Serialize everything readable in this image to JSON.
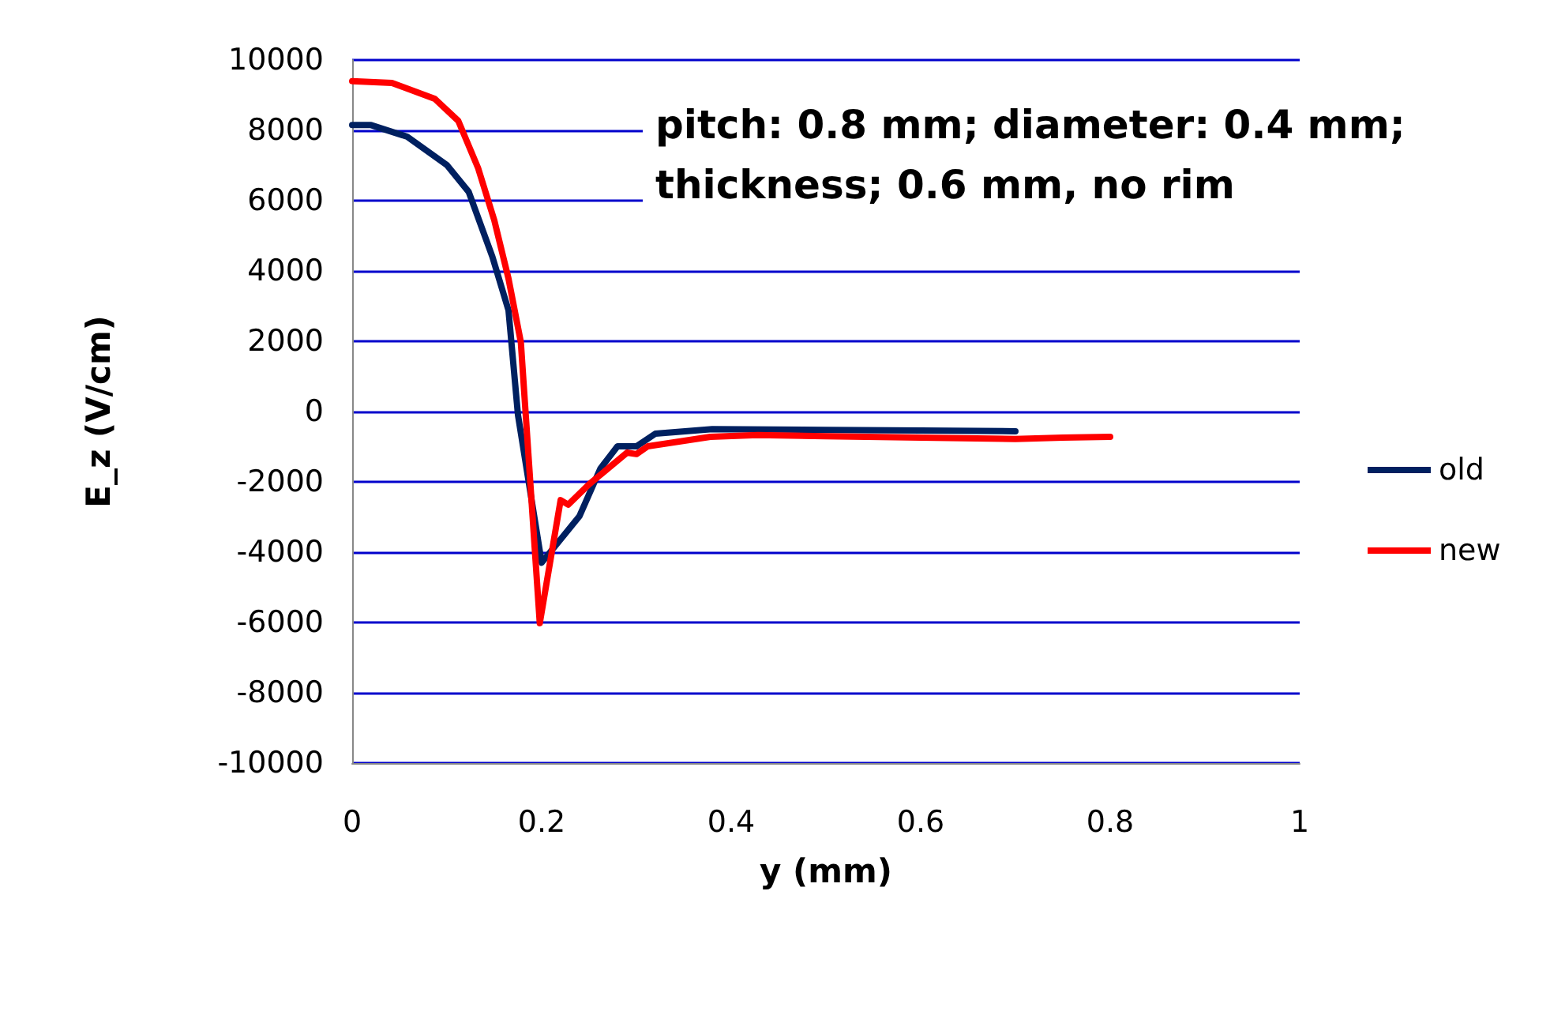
{
  "chart_data": {
    "type": "line",
    "xlabel": "y (mm)",
    "ylabel": "E_z (V/cm)",
    "annotations": [
      "pitch: 0.8 mm; diameter: 0.4 mm; thickness; 0.6 mm, no rim"
    ],
    "xlim": [
      0,
      1
    ],
    "xticks": [
      0,
      0.2,
      0.4,
      0.6,
      0.8,
      1
    ],
    "ylim": [
      -10000,
      10000
    ],
    "yticks": [
      -10000,
      -8000,
      -6000,
      -4000,
      -2000,
      0,
      2000,
      4000,
      6000,
      8000,
      10000
    ],
    "grid": "y",
    "legend": "right",
    "marker": "none",
    "line_style": "solid",
    "series": [
      {
        "name": "old",
        "color": "#002060",
        "x": [
          0,
          0.02,
          0.058,
          0.1,
          0.123,
          0.148,
          0.165,
          0.175,
          0.2,
          0.24,
          0.262,
          0.28,
          0.3,
          0.32,
          0.38,
          0.5,
          0.6,
          0.7
        ],
        "values": [
          8150,
          8150,
          7820,
          7010,
          6250,
          4400,
          2880,
          -100,
          -4300,
          -2970,
          -1620,
          -990,
          -990,
          -630,
          -500,
          -520,
          -540,
          -560
        ]
      },
      {
        "name": "new",
        "color": "#ff0000",
        "x": [
          0,
          0.042,
          0.087,
          0.112,
          0.133,
          0.15,
          0.165,
          0.178,
          0.198,
          0.22,
          0.228,
          0.25,
          0.29,
          0.3,
          0.312,
          0.378,
          0.428,
          0.5,
          0.6,
          0.7,
          0.75,
          0.8
        ],
        "values": [
          9400,
          9350,
          8900,
          8270,
          6920,
          5440,
          3780,
          1980,
          -6020,
          -2520,
          -2650,
          -2070,
          -1170,
          -1210,
          -990,
          -720,
          -670,
          -700,
          -740,
          -780,
          -740,
          -720
        ]
      }
    ]
  }
}
